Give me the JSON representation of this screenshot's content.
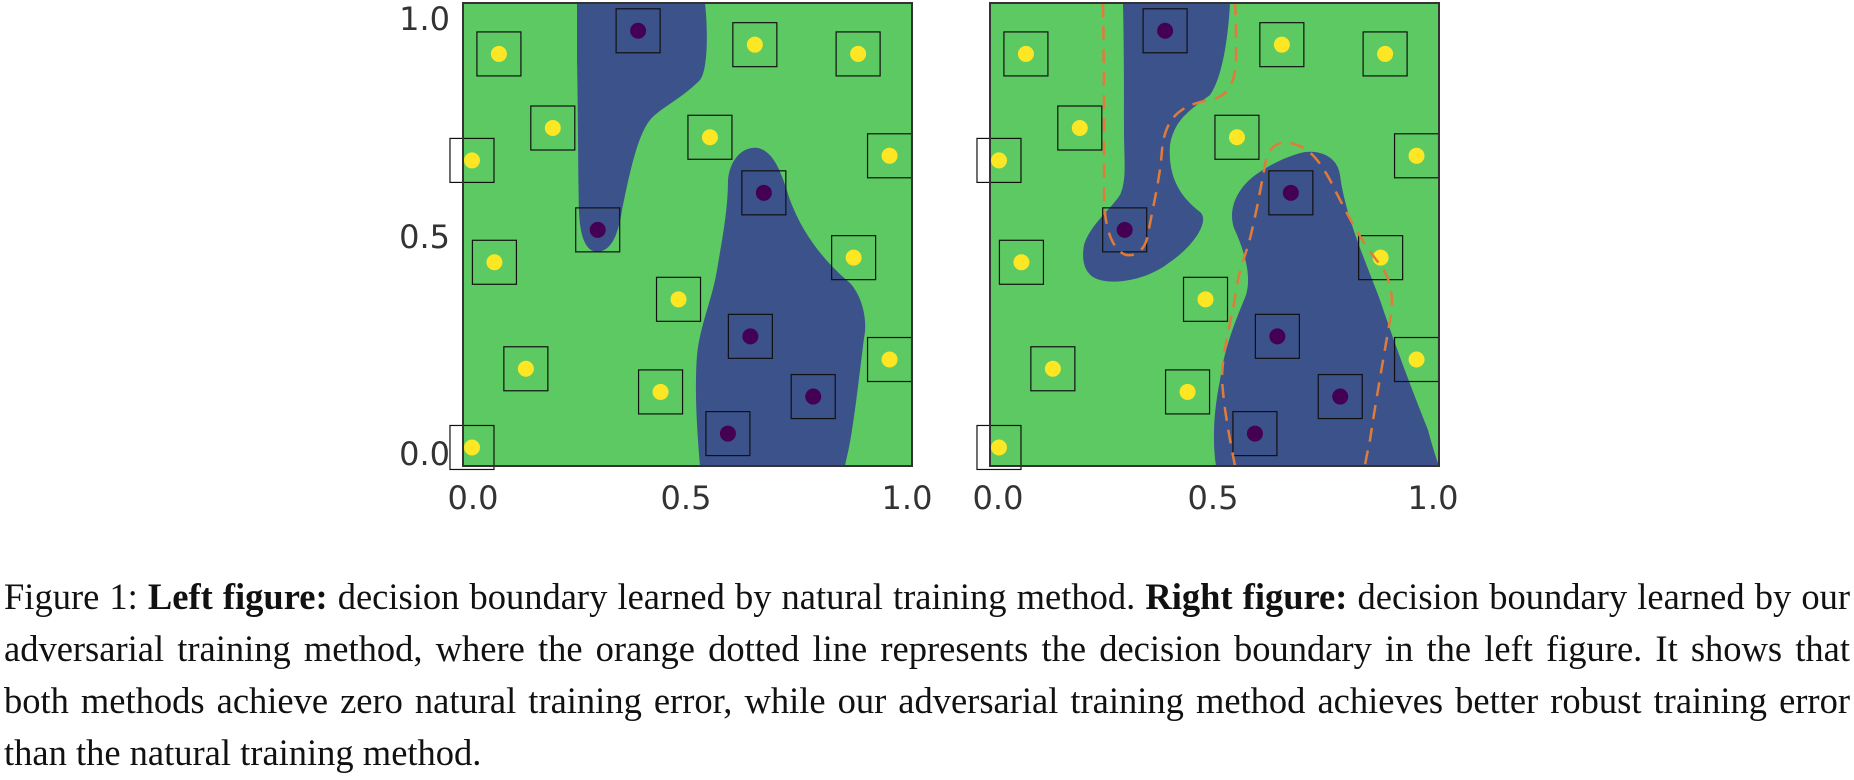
{
  "chart_data": [
    {
      "type": "scatter",
      "title": "",
      "xlabel": "",
      "ylabel": "",
      "xlim": [
        0,
        1
      ],
      "ylim": [
        0,
        1
      ],
      "xticks": [
        "0.0",
        "0.5",
        "1.0"
      ],
      "yticks": [
        "0.0",
        "0.5",
        "1.0"
      ],
      "grid": false,
      "colors": {
        "background_region": "#5dc963",
        "class_region": "#3b528b",
        "yellow_points": "#fde725",
        "purple_points": "#440154",
        "box": "#111111"
      },
      "series": [
        {
          "color": "yellow",
          "points": [
            [
              0.08,
              0.89
            ],
            [
              0.2,
              0.73
            ],
            [
              0.02,
              0.66
            ],
            [
              0.07,
              0.44
            ],
            [
              0.14,
              0.21
            ],
            [
              0.48,
              0.36
            ],
            [
              0.44,
              0.16
            ],
            [
              0.02,
              0.04
            ],
            [
              0.55,
              0.71
            ],
            [
              0.65,
              0.91
            ],
            [
              0.88,
              0.89
            ],
            [
              0.95,
              0.67
            ],
            [
              0.87,
              0.45
            ],
            [
              0.95,
              0.23
            ]
          ]
        },
        {
          "color": "purple",
          "points": [
            [
              0.39,
              0.94
            ],
            [
              0.3,
              0.51
            ],
            [
              0.67,
              0.59
            ],
            [
              0.64,
              0.28
            ],
            [
              0.78,
              0.15
            ],
            [
              0.59,
              0.07
            ]
          ]
        }
      ]
    },
    {
      "type": "scatter",
      "title": "",
      "xlabel": "",
      "ylabel": "",
      "xlim": [
        0,
        1
      ],
      "ylim": [
        0,
        1
      ],
      "xticks": [
        "0.0",
        "0.5",
        "1.0"
      ],
      "yticks": [],
      "grid": false,
      "colors": {
        "background_region": "#5dc963",
        "class_region": "#3b528b",
        "yellow_points": "#fde725",
        "purple_points": "#440154",
        "box": "#111111",
        "boundary_line": "#e07b39"
      },
      "series": [
        {
          "color": "yellow",
          "points": [
            [
              0.08,
              0.89
            ],
            [
              0.2,
              0.73
            ],
            [
              0.02,
              0.66
            ],
            [
              0.07,
              0.44
            ],
            [
              0.14,
              0.21
            ],
            [
              0.48,
              0.36
            ],
            [
              0.44,
              0.16
            ],
            [
              0.02,
              0.04
            ],
            [
              0.55,
              0.71
            ],
            [
              0.65,
              0.91
            ],
            [
              0.88,
              0.89
            ],
            [
              0.95,
              0.67
            ],
            [
              0.87,
              0.45
            ],
            [
              0.95,
              0.23
            ]
          ]
        },
        {
          "color": "purple",
          "points": [
            [
              0.39,
              0.94
            ],
            [
              0.3,
              0.51
            ],
            [
              0.67,
              0.59
            ],
            [
              0.64,
              0.28
            ],
            [
              0.78,
              0.15
            ],
            [
              0.59,
              0.07
            ]
          ]
        }
      ]
    }
  ],
  "caption": {
    "label": "Figure 1: ",
    "left_bold": "Left figure:",
    "left_text": " decision boundary learned by natural training method. ",
    "right_bold": "Right figure:",
    "right_text": " decision boundary learned by our adversarial training method, where the orange dotted line represents the decision boundary in the left figure. It shows that both methods achieve zero natural training error, while our adversarial training method achieves better robust training error than the natural training method."
  }
}
